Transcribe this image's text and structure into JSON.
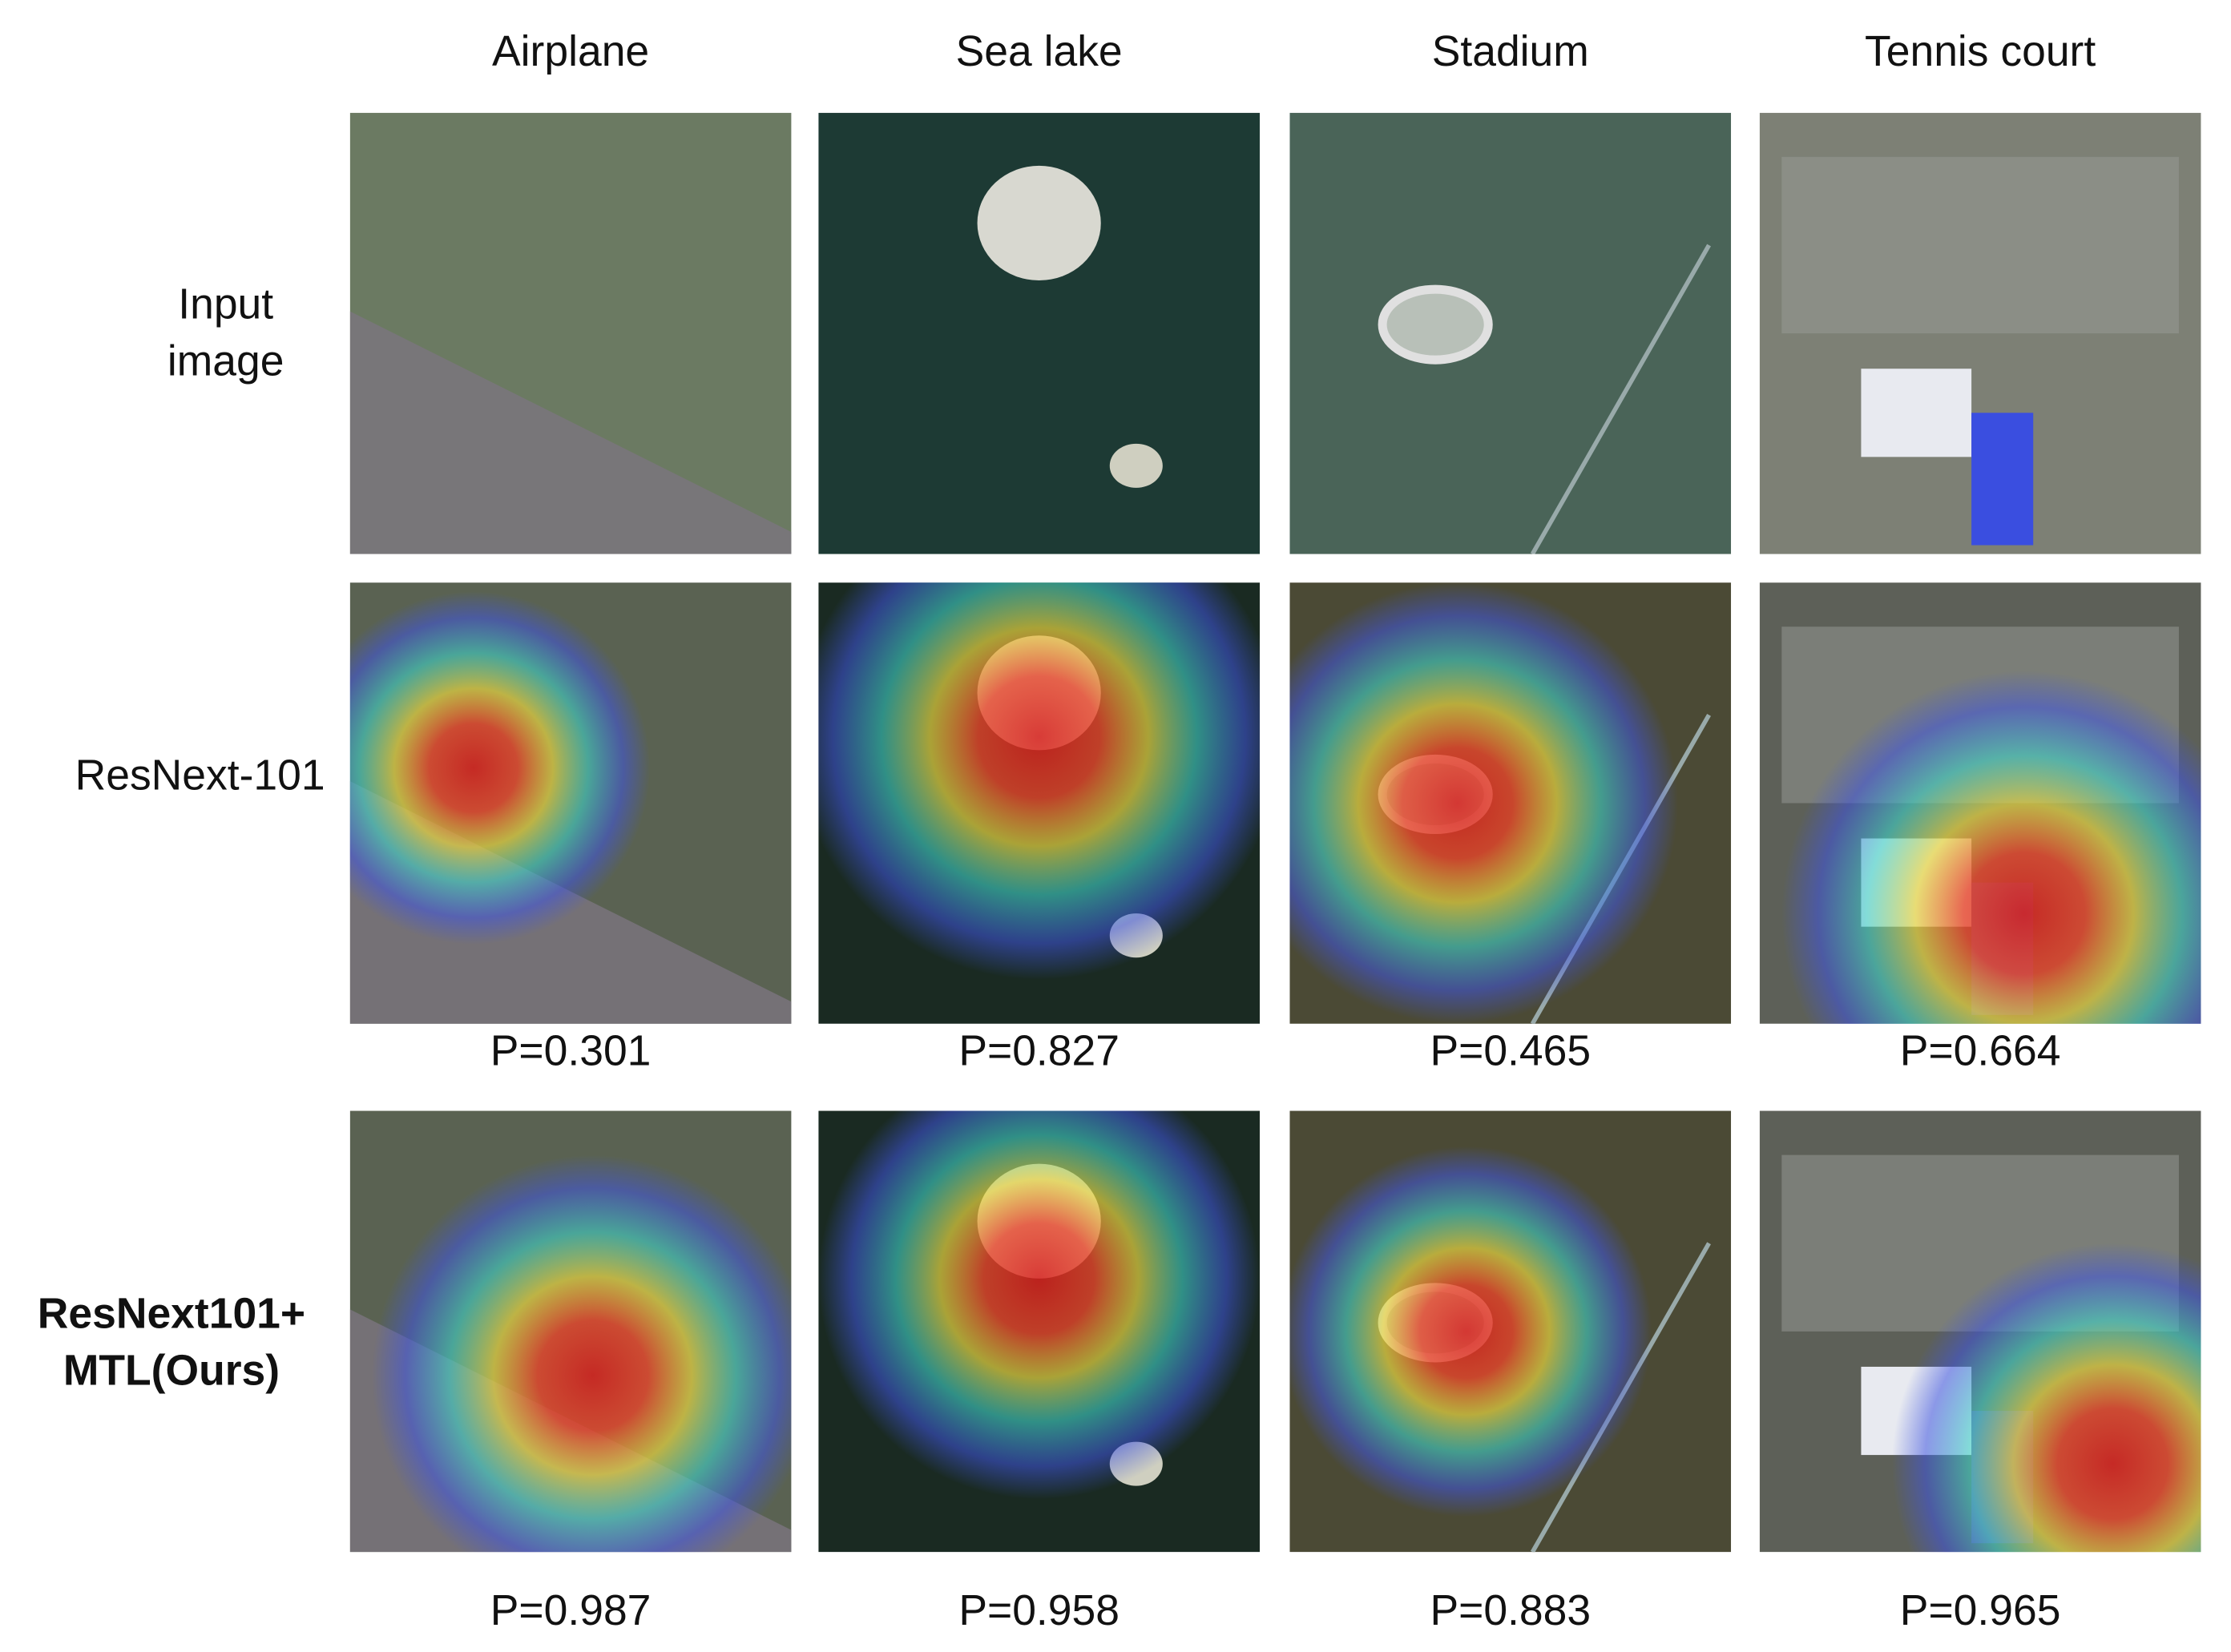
{
  "columns": [
    "Airplane",
    "Sea lake",
    "Stadium",
    "Tennis court"
  ],
  "row_labels": [
    [
      "Input",
      "image"
    ],
    [
      "ResNext-101"
    ],
    [
      "ResNext101+",
      "MTL(Ours)"
    ]
  ],
  "scores": [
    [
      "P=0.301",
      "P=0.827",
      "P=0.465",
      "P=0.664"
    ],
    [
      "P=0.987",
      "P=0.958",
      "P=0.883",
      "P=0.965"
    ]
  ]
}
